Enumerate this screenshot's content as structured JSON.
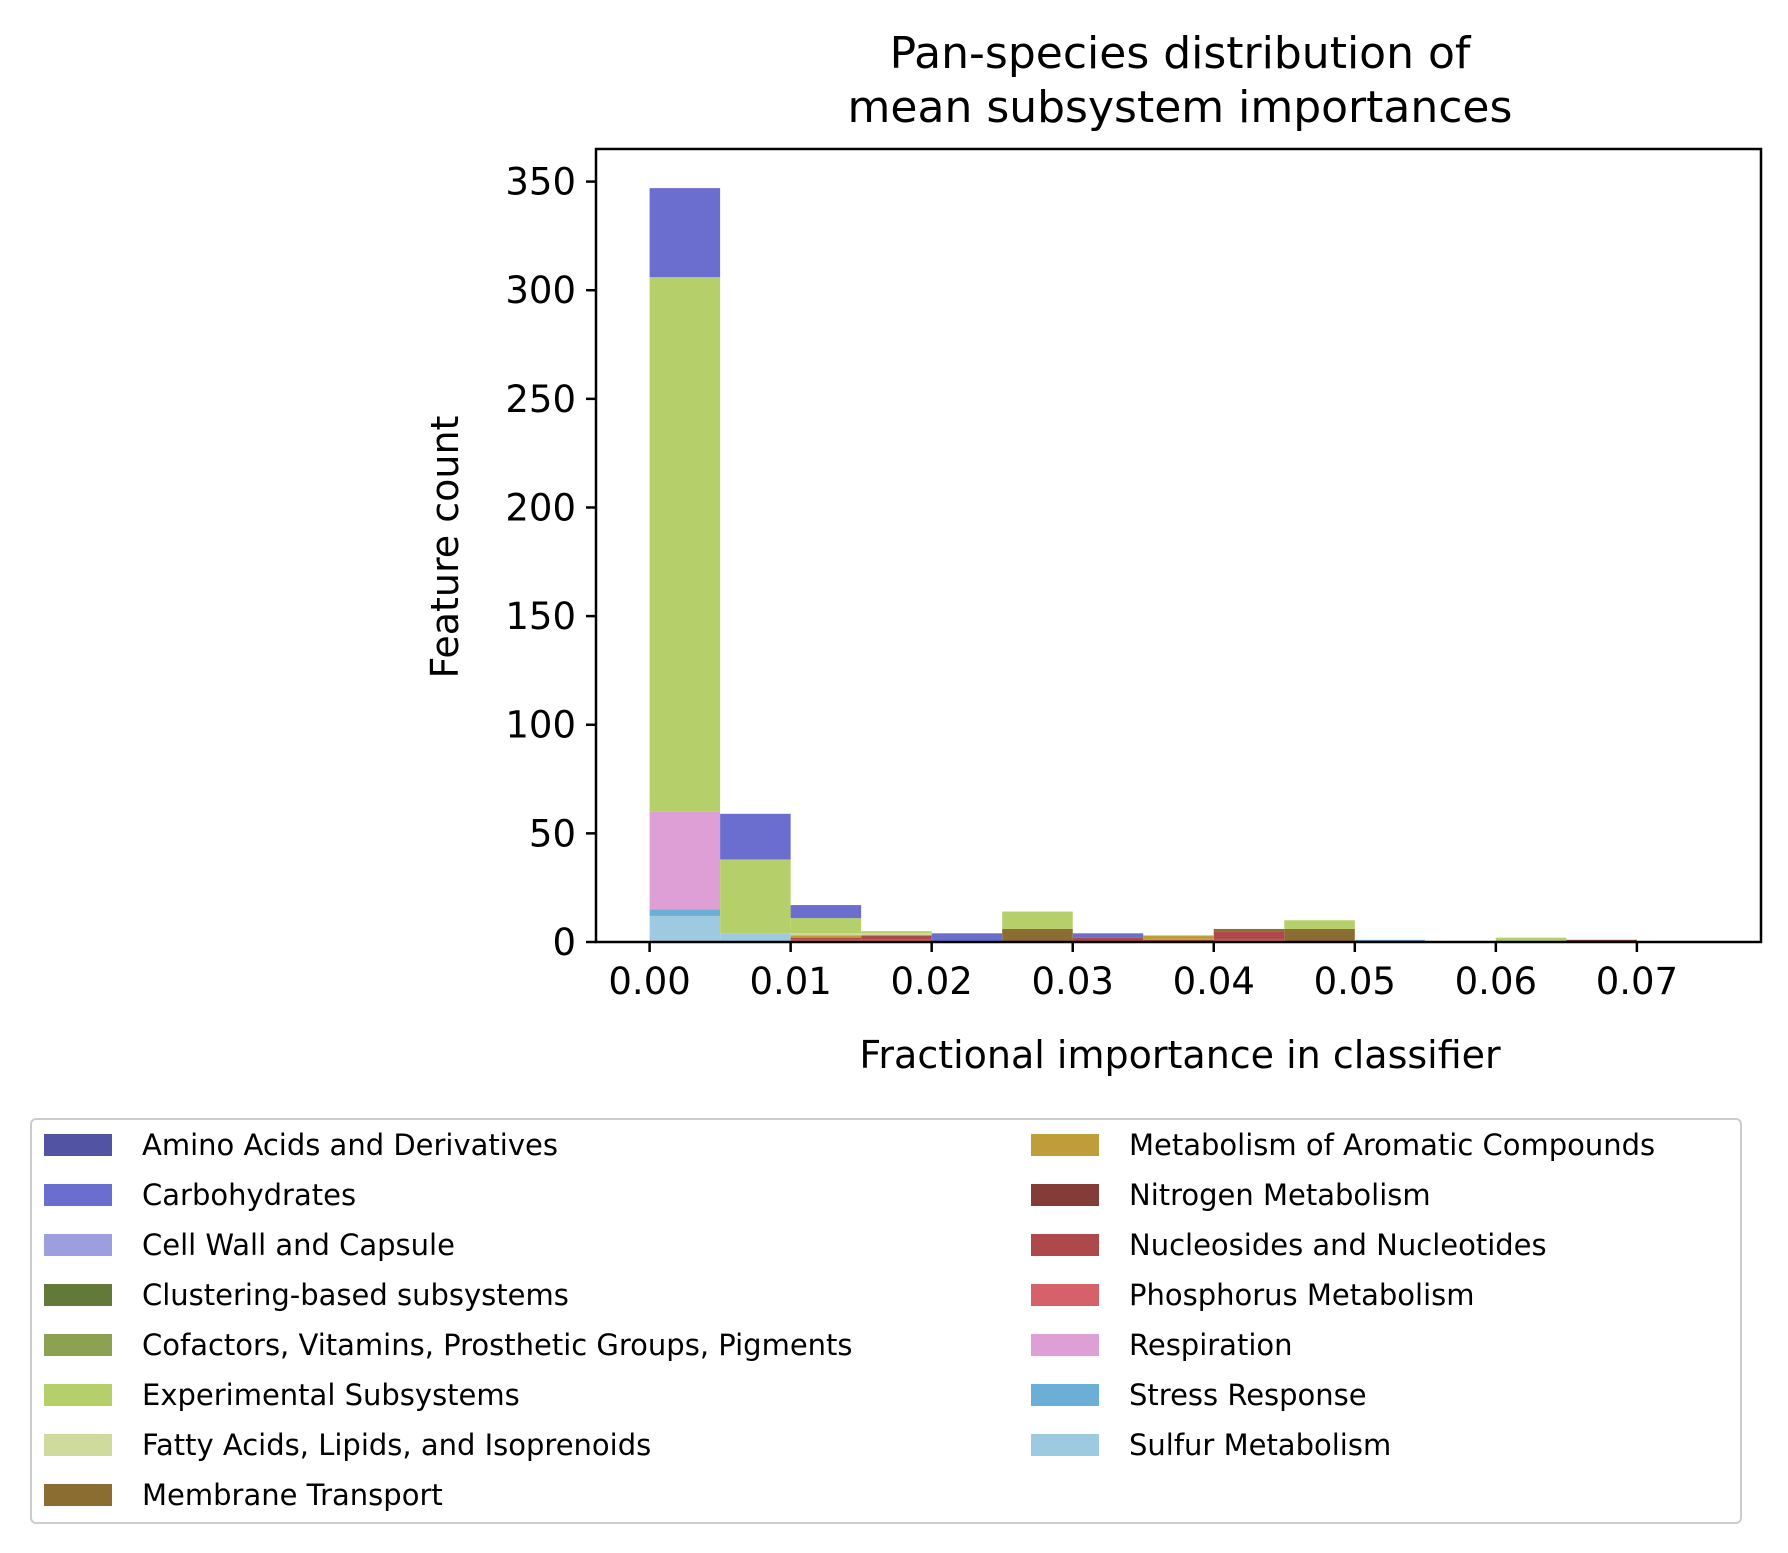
{
  "chart_data": {
    "type": "bar",
    "title": [
      "Pan-species distribution of",
      "mean subsystem importances"
    ],
    "xlabel": "Fractional importance in classifier",
    "ylabel": "Feature count",
    "xlim": [
      -0.0038,
      0.0788
    ],
    "ylim": [
      0,
      365
    ],
    "xticks": [
      "0.00",
      "0.01",
      "0.02",
      "0.03",
      "0.04",
      "0.05",
      "0.06",
      "0.07"
    ],
    "yticks": [
      "0",
      "50",
      "100",
      "150",
      "200",
      "250",
      "300",
      "350"
    ],
    "bin_edges": [
      0.0,
      0.005,
      0.01,
      0.015,
      0.02,
      0.025,
      0.03,
      0.035,
      0.04,
      0.045,
      0.05,
      0.055,
      0.06,
      0.065,
      0.07,
      0.075
    ],
    "stacked": true,
    "grid": false,
    "legend_position": "bottom",
    "series": [
      {
        "name": "Sulfur Metabolism",
        "color": "#9ecae1",
        "values": [
          12,
          4,
          0,
          0,
          0,
          0,
          0,
          0,
          0,
          0,
          0,
          0,
          0,
          0,
          0
        ]
      },
      {
        "name": "Stress Response",
        "color": "#6baed6",
        "values": [
          3,
          0,
          0,
          0,
          0,
          0,
          0,
          0,
          0,
          0,
          1,
          0,
          0,
          0,
          0
        ]
      },
      {
        "name": "Respiration",
        "color": "#de9ed6",
        "values": [
          45,
          0,
          0,
          0,
          0,
          0,
          0,
          0,
          0,
          0,
          0,
          0,
          0,
          0,
          0
        ]
      },
      {
        "name": "Phosphorus Metabolism",
        "color": "#d6616b",
        "values": [
          0,
          0,
          1,
          1,
          0,
          0,
          0,
          0,
          1,
          0,
          0,
          0,
          0,
          0,
          0
        ]
      },
      {
        "name": "Nucleosides and Nucleotides",
        "color": "#ad494a",
        "values": [
          0,
          0,
          1,
          2,
          0,
          0,
          2,
          1,
          4,
          0,
          0,
          0,
          0,
          0,
          0
        ]
      },
      {
        "name": "Nitrogen Metabolism",
        "color": "#843c39",
        "values": [
          0,
          0,
          0,
          0,
          0,
          0,
          0,
          0,
          0,
          0,
          0,
          0,
          0,
          1,
          0
        ]
      },
      {
        "name": "Metabolism of Aromatic Compounds",
        "color": "#bd9e39",
        "values": [
          0,
          0,
          1,
          0,
          0,
          0,
          0,
          2,
          0,
          0,
          0,
          0,
          0,
          0,
          0
        ]
      },
      {
        "name": "Membrane Transport",
        "color": "#8c6d31",
        "values": [
          0,
          0,
          0,
          0,
          0,
          6,
          0,
          0,
          1,
          6,
          0,
          0,
          0,
          0,
          0
        ]
      },
      {
        "name": "Fatty Acids, Lipids, and Isoprenoids",
        "color": "#cedb9c",
        "values": [
          0,
          0,
          1,
          1,
          0,
          0,
          0,
          0,
          0,
          0,
          0,
          0,
          0,
          0,
          0
        ]
      },
      {
        "name": "Experimental Subsystems",
        "color": "#b5cf6b",
        "values": [
          246,
          34,
          7,
          1,
          0,
          8,
          0,
          0,
          0,
          4,
          0,
          0,
          2,
          0,
          0
        ]
      },
      {
        "name": "Cofactors, Vitamins, Prosthetic Groups, Pigments",
        "color": "#8ca252",
        "values": [
          0,
          0,
          0,
          0,
          0,
          0,
          0,
          0,
          0,
          0,
          0,
          0,
          0,
          0,
          0
        ]
      },
      {
        "name": "Clustering-based subsystems",
        "color": "#637939",
        "values": [
          0,
          0,
          0,
          0,
          0,
          0,
          0,
          0,
          0,
          0,
          0,
          0,
          0,
          0,
          0
        ]
      },
      {
        "name": "Cell Wall and Capsule",
        "color": "#9c9ede",
        "values": [
          0,
          0,
          0,
          0,
          0,
          0,
          0,
          0,
          0,
          0,
          0,
          0,
          0,
          0,
          0
        ]
      },
      {
        "name": "Carbohydrates",
        "color": "#6b6ecf",
        "values": [
          41,
          21,
          6,
          0,
          4,
          0,
          2,
          0,
          0,
          0,
          0,
          0,
          0,
          0,
          0
        ]
      },
      {
        "name": "Amino Acids and Derivatives",
        "color": "#5254a3",
        "values": [
          0,
          0,
          0,
          0,
          0,
          0,
          0,
          0,
          0,
          0,
          0,
          0,
          0,
          0,
          0
        ]
      }
    ]
  },
  "legend": {
    "left": [
      {
        "label": "Amino Acids and Derivatives",
        "color": "#5254a3"
      },
      {
        "label": "Carbohydrates",
        "color": "#6b6ecf"
      },
      {
        "label": "Cell Wall and Capsule",
        "color": "#9c9ede"
      },
      {
        "label": "Clustering-based subsystems",
        "color": "#637939"
      },
      {
        "label": "Cofactors, Vitamins, Prosthetic Groups, Pigments",
        "color": "#8ca252"
      },
      {
        "label": "Experimental Subsystems",
        "color": "#b5cf6b"
      },
      {
        "label": "Fatty Acids, Lipids, and Isoprenoids",
        "color": "#cedb9c"
      },
      {
        "label": "Membrane Transport",
        "color": "#8c6d31"
      }
    ],
    "right": [
      {
        "label": "Metabolism of Aromatic Compounds",
        "color": "#bd9e39"
      },
      {
        "label": "Nitrogen Metabolism",
        "color": "#843c39"
      },
      {
        "label": "Nucleosides and Nucleotides",
        "color": "#ad494a"
      },
      {
        "label": "Phosphorus Metabolism",
        "color": "#d6616b"
      },
      {
        "label": "Respiration",
        "color": "#de9ed6"
      },
      {
        "label": "Stress Response",
        "color": "#6baed6"
      },
      {
        "label": "Sulfur Metabolism",
        "color": "#9ecae1"
      }
    ]
  }
}
